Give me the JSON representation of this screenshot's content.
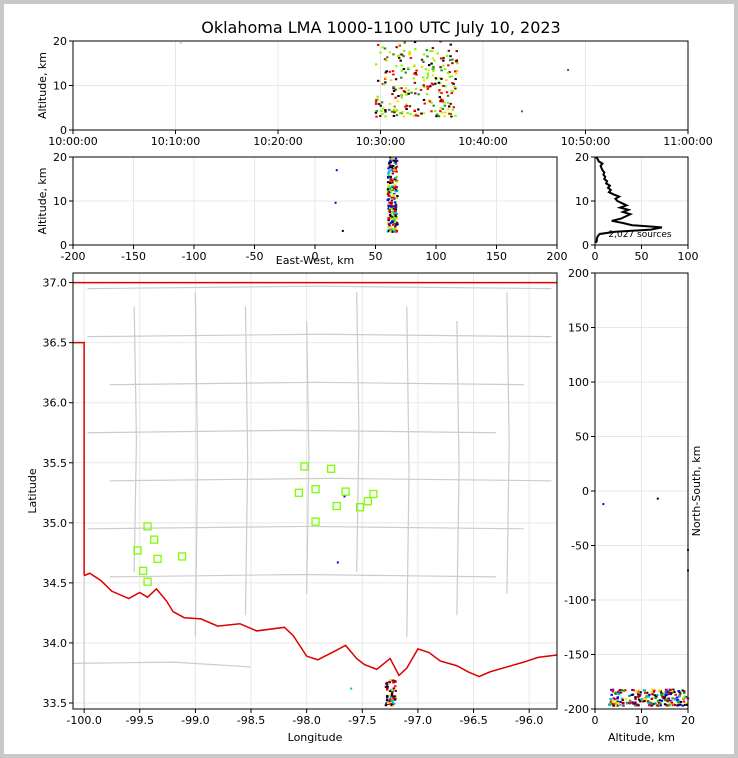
{
  "chart_data": {
    "type": "scatter",
    "title": "Oklahoma LMA 1000-1100 UTC July 10, 2023",
    "colors": {
      "border": "#cccccc",
      "state_line": "#dd0000",
      "station": "#7cfc00",
      "histogram": "#000000",
      "grid": "#e8e8e8",
      "source_scale": [
        "#7cfc00",
        "#228b22",
        "#00bcd4",
        "#0000ff",
        "#ffd700",
        "#ff7f00",
        "#ff0000",
        "#8b0000",
        "#000000"
      ]
    },
    "panels": [
      {
        "id": "time-altitude",
        "ylabel": "Altitude, km",
        "xlabel": "",
        "ylim": [
          0,
          20
        ],
        "yticks": [
          "0",
          "10",
          "20"
        ],
        "xlim_minutes": [
          0,
          60
        ],
        "xticks": [
          "10:00:00",
          "10:10:00",
          "10:20:00",
          "10:30:00",
          "10:40:00",
          "10:50:00",
          "11:00:00"
        ],
        "source_clusters": [
          {
            "x_range": [
              29.5,
              37.5
            ],
            "y_range": [
              3,
              20
            ],
            "count": 260,
            "colors": [
              "#7cfc00",
              "#228b22",
              "#7cfc00",
              "#ff0000",
              "#ffd700",
              "#8b0000",
              "#000000"
            ]
          }
        ],
        "outliers": [
          {
            "x": 43.8,
            "y": 4.2,
            "color": "#228b22"
          },
          {
            "x": 48.3,
            "y": 13.5,
            "color": "#228b22"
          },
          {
            "x": 10.5,
            "y": 19.6,
            "color": "#cccccc"
          }
        ]
      },
      {
        "id": "east-west-altitude",
        "xlabel": "East-West, km",
        "ylabel": "Altitude, km",
        "xlim": [
          -200,
          200
        ],
        "ylim": [
          0,
          20
        ],
        "xticks": [
          "-200",
          "-150",
          "-100",
          "-50",
          "0",
          "50",
          "100",
          "150",
          "200"
        ],
        "yticks": [
          "0",
          "10",
          "20"
        ],
        "source_clusters": [
          {
            "x_range": [
              60,
              68
            ],
            "y_range": [
              3,
              20
            ],
            "count": 220,
            "colors": [
              "#00bcd4",
              "#0000ff",
              "#ffd700",
              "#ff0000",
              "#8b0000",
              "#000000",
              "#7cfc00"
            ]
          }
        ],
        "outliers": [
          {
            "x": 18,
            "y": 17,
            "color": "#0000ff"
          },
          {
            "x": 17,
            "y": 9.6,
            "color": "#0000ff"
          },
          {
            "x": 23,
            "y": 3.2,
            "color": "#000000"
          }
        ]
      },
      {
        "id": "altitude-histogram",
        "xlim": [
          0,
          100
        ],
        "ylim": [
          0,
          20
        ],
        "xticks": [
          "0",
          "50",
          "100"
        ],
        "yticks": [
          "0",
          "10",
          "20"
        ],
        "annotation": "2,027 sources",
        "profile": [
          {
            "alt": 0.5,
            "count": 1
          },
          {
            "alt": 1,
            "count": 2
          },
          {
            "alt": 1.5,
            "count": 2
          },
          {
            "alt": 2,
            "count": 3
          },
          {
            "alt": 2.5,
            "count": 5
          },
          {
            "alt": 3,
            "count": 22
          },
          {
            "alt": 3.5,
            "count": 60
          },
          {
            "alt": 4,
            "count": 72
          },
          {
            "alt": 4.5,
            "count": 40
          },
          {
            "alt": 5,
            "count": 30
          },
          {
            "alt": 5.5,
            "count": 18
          },
          {
            "alt": 6,
            "count": 28
          },
          {
            "alt": 6.5,
            "count": 33
          },
          {
            "alt": 7,
            "count": 38
          },
          {
            "alt": 7.5,
            "count": 30
          },
          {
            "alt": 8,
            "count": 36
          },
          {
            "alt": 8.5,
            "count": 27
          },
          {
            "alt": 9,
            "count": 34
          },
          {
            "alt": 9.5,
            "count": 29
          },
          {
            "alt": 10,
            "count": 24
          },
          {
            "alt": 10.5,
            "count": 22
          },
          {
            "alt": 11,
            "count": 26
          },
          {
            "alt": 11.5,
            "count": 20
          },
          {
            "alt": 12,
            "count": 15
          },
          {
            "alt": 12.5,
            "count": 17
          },
          {
            "alt": 13,
            "count": 14
          },
          {
            "alt": 13.5,
            "count": 16
          },
          {
            "alt": 14,
            "count": 12
          },
          {
            "alt": 14.5,
            "count": 13
          },
          {
            "alt": 15,
            "count": 10
          },
          {
            "alt": 15.5,
            "count": 11
          },
          {
            "alt": 16,
            "count": 9
          },
          {
            "alt": 16.5,
            "count": 10
          },
          {
            "alt": 17,
            "count": 8
          },
          {
            "alt": 17.5,
            "count": 7
          },
          {
            "alt": 18,
            "count": 6
          },
          {
            "alt": 18.5,
            "count": 8
          },
          {
            "alt": 19,
            "count": 4
          },
          {
            "alt": 19.5,
            "count": 3
          },
          {
            "alt": 20,
            "count": 1
          }
        ]
      },
      {
        "id": "plan-view",
        "xlabel": "Longitude",
        "ylabel": "Latitude",
        "xlim": [
          -100.1,
          -95.75
        ],
        "ylim": [
          33.45,
          37.08
        ],
        "xticks": [
          "-100.0",
          "-99.5",
          "-99.0",
          "-98.5",
          "-98.0",
          "-97.5",
          "-97.0",
          "-96.5",
          "-96.0"
        ],
        "yticks": [
          "33.5",
          "34.0",
          "34.5",
          "35.0",
          "35.5",
          "36.0",
          "36.5",
          "37.0"
        ],
        "stations": [
          {
            "lon": -98.02,
            "lat": 35.47
          },
          {
            "lon": -97.78,
            "lat": 35.45
          },
          {
            "lon": -98.07,
            "lat": 35.25
          },
          {
            "lon": -97.92,
            "lat": 35.28
          },
          {
            "lon": -97.65,
            "lat": 35.26
          },
          {
            "lon": -97.4,
            "lat": 35.24
          },
          {
            "lon": -97.45,
            "lat": 35.18
          },
          {
            "lon": -97.73,
            "lat": 35.14
          },
          {
            "lon": -97.52,
            "lat": 35.13
          },
          {
            "lon": -97.92,
            "lat": 35.01
          },
          {
            "lon": -99.43,
            "lat": 34.97
          },
          {
            "lon": -99.37,
            "lat": 34.86
          },
          {
            "lon": -99.52,
            "lat": 34.77
          },
          {
            "lon": -99.12,
            "lat": 34.72
          },
          {
            "lon": -99.34,
            "lat": 34.7
          },
          {
            "lon": -99.47,
            "lat": 34.6
          },
          {
            "lon": -99.43,
            "lat": 34.51
          }
        ],
        "source_clusters": [
          {
            "x_range": [
              -97.29,
              -97.2
            ],
            "y_range": [
              33.48,
              33.7
            ],
            "count": 70,
            "colors": [
              "#ff0000",
              "#000000",
              "#8b0000",
              "#00bcd4",
              "#ffd700",
              "#0000ff"
            ]
          }
        ],
        "outliers": [
          {
            "x": -97.72,
            "y": 34.67,
            "color": "#0000ff"
          },
          {
            "x": -97.6,
            "y": 33.62,
            "color": "#00bcd4"
          },
          {
            "x": -97.66,
            "y": 35.22,
            "color": "#0000ff"
          }
        ]
      },
      {
        "id": "north-south-altitude",
        "xlabel": "Altitude, km",
        "ylabel": "North-South, km",
        "xlim": [
          0,
          20
        ],
        "ylim": [
          -200,
          200
        ],
        "xticks": [
          "0",
          "10",
          "20"
        ],
        "yticks": [
          "-200",
          "-150",
          "-100",
          "-50",
          "0",
          "50",
          "100",
          "150",
          "200"
        ],
        "source_clusters": [
          {
            "x_range": [
              3,
              20
            ],
            "y_range": [
              -197,
              -182
            ],
            "count": 230,
            "colors": [
              "#ff0000",
              "#000000",
              "#00bcd4",
              "#228b22",
              "#ffd700",
              "#0000ff",
              "#8b0000"
            ]
          }
        ],
        "outliers": [
          {
            "x": 1.8,
            "y": -12,
            "color": "#0000ff"
          },
          {
            "x": 13.5,
            "y": -7,
            "color": "#000000"
          },
          {
            "x": 20,
            "y": -54,
            "color": "#0000ff"
          },
          {
            "x": 20,
            "y": -73,
            "color": "#0000ff"
          }
        ]
      }
    ]
  }
}
